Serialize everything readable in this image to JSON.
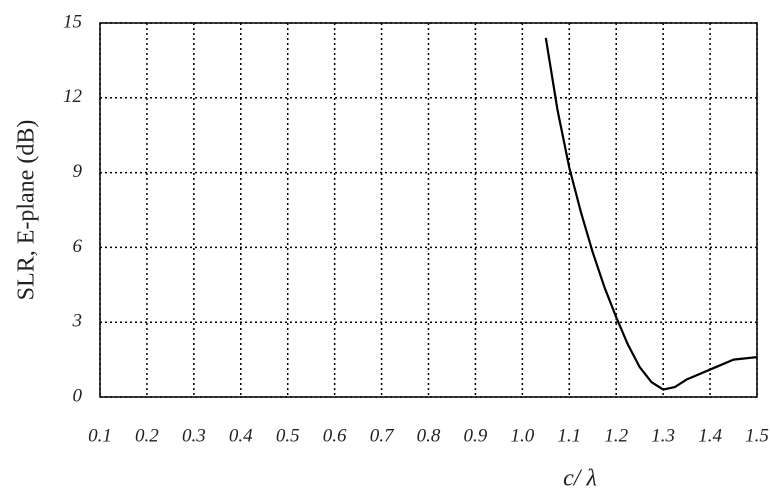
{
  "chart_data": {
    "type": "line",
    "x_label": "c/ λ",
    "y_label": "SLR, E-plane (dB)",
    "x": [
      1.05,
      1.075,
      1.1,
      1.125,
      1.15,
      1.175,
      1.2,
      1.225,
      1.25,
      1.275,
      1.3,
      1.325,
      1.35,
      1.4,
      1.45,
      1.5
    ],
    "series": [
      {
        "color": "#000000",
        "values": [
          14.4,
          11.5,
          9.2,
          7.4,
          5.8,
          4.4,
          3.2,
          2.1,
          1.2,
          0.6,
          0.3,
          0.4,
          0.7,
          1.1,
          1.5,
          1.6
        ]
      }
    ],
    "xlim": [
      0.1,
      1.5
    ],
    "xticks": [
      0.1,
      0.2,
      0.3,
      0.4,
      0.5,
      0.6,
      0.7,
      0.8,
      0.9,
      {
        "value": 1,
        "label": "1.0"
      },
      1.1,
      1.2,
      1.3,
      1.4,
      1.5
    ],
    "ylim": [
      0,
      15
    ],
    "yticks": [
      0,
      3,
      6,
      9,
      12,
      15
    ],
    "grid": true
  }
}
